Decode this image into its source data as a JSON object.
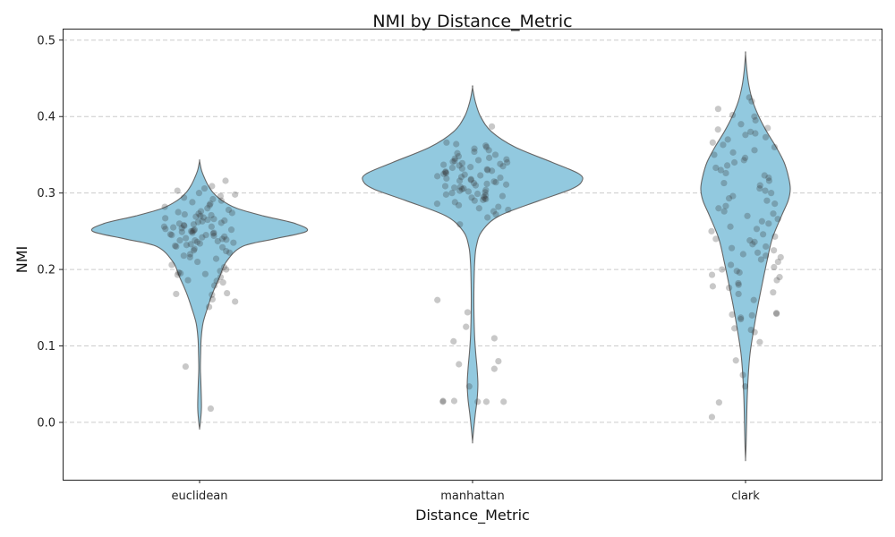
{
  "chart_data": {
    "type": "violin",
    "title": "NMI by Distance_Metric",
    "xlabel": "Distance_Metric",
    "ylabel": "NMI",
    "categories": [
      "euclidean",
      "manhattan",
      "clark"
    ],
    "ylim": [
      -0.075,
      0.515
    ],
    "yticks": [
      "0.0",
      "0.1",
      "0.2",
      "0.3",
      "0.4",
      "0.5"
    ],
    "grid": "y-dashed",
    "colors": {
      "violin_fill": "#92c9df",
      "violin_edge": "#666666",
      "points": "#333333",
      "grid": "#cccccc"
    },
    "violins": [
      {
        "category": "euclidean",
        "profile": [
          [
            -0.008,
            0
          ],
          [
            0.0,
            0.003
          ],
          [
            0.02,
            0.007
          ],
          [
            0.05,
            0.005
          ],
          [
            0.07,
            0.003
          ],
          [
            0.09,
            0.004
          ],
          [
            0.11,
            0.006
          ],
          [
            0.13,
            0.013
          ],
          [
            0.15,
            0.03
          ],
          [
            0.17,
            0.05
          ],
          [
            0.19,
            0.075
          ],
          [
            0.21,
            0.1
          ],
          [
            0.23,
            0.16
          ],
          [
            0.24,
            0.28
          ],
          [
            0.25,
            0.402
          ],
          [
            0.26,
            0.36
          ],
          [
            0.27,
            0.24
          ],
          [
            0.28,
            0.14
          ],
          [
            0.29,
            0.085
          ],
          [
            0.3,
            0.052
          ],
          [
            0.31,
            0.032
          ],
          [
            0.32,
            0.018
          ],
          [
            0.33,
            0.007
          ],
          [
            0.342,
            0
          ]
        ]
      },
      {
        "category": "manhattan",
        "profile": [
          [
            -0.025,
            0
          ],
          [
            -0.01,
            0.004
          ],
          [
            0.01,
            0.01
          ],
          [
            0.03,
            0.017
          ],
          [
            0.05,
            0.02
          ],
          [
            0.07,
            0.017
          ],
          [
            0.09,
            0.012
          ],
          [
            0.11,
            0.008
          ],
          [
            0.13,
            0.006
          ],
          [
            0.15,
            0.005
          ],
          [
            0.17,
            0.005
          ],
          [
            0.19,
            0.006
          ],
          [
            0.21,
            0.008
          ],
          [
            0.23,
            0.014
          ],
          [
            0.25,
            0.035
          ],
          [
            0.27,
            0.1
          ],
          [
            0.29,
            0.25
          ],
          [
            0.305,
            0.37
          ],
          [
            0.315,
            0.41
          ],
          [
            0.325,
            0.4
          ],
          [
            0.34,
            0.3
          ],
          [
            0.36,
            0.16
          ],
          [
            0.38,
            0.072
          ],
          [
            0.4,
            0.03
          ],
          [
            0.42,
            0.01
          ],
          [
            0.438,
            0
          ]
        ]
      },
      {
        "category": "clark",
        "profile": [
          [
            -0.048,
            0
          ],
          [
            -0.03,
            0.002
          ],
          [
            0.0,
            0.004
          ],
          [
            0.03,
            0.006
          ],
          [
            0.06,
            0.01
          ],
          [
            0.09,
            0.017
          ],
          [
            0.12,
            0.03
          ],
          [
            0.15,
            0.045
          ],
          [
            0.18,
            0.062
          ],
          [
            0.21,
            0.08
          ],
          [
            0.24,
            0.1
          ],
          [
            0.27,
            0.135
          ],
          [
            0.29,
            0.16
          ],
          [
            0.305,
            0.168
          ],
          [
            0.32,
            0.162
          ],
          [
            0.34,
            0.145
          ],
          [
            0.36,
            0.115
          ],
          [
            0.38,
            0.08
          ],
          [
            0.4,
            0.05
          ],
          [
            0.42,
            0.027
          ],
          [
            0.44,
            0.013
          ],
          [
            0.46,
            0.005
          ],
          [
            0.482,
            0
          ]
        ]
      }
    ],
    "points": [
      {
        "category": "euclidean",
        "values": [
          0.018,
          0.073,
          0.151,
          0.158,
          0.161,
          0.167,
          0.168,
          0.169,
          0.179,
          0.183,
          0.185,
          0.186,
          0.19,
          0.193,
          0.194,
          0.195,
          0.196,
          0.198,
          0.2,
          0.203,
          0.206,
          0.21,
          0.214,
          0.216,
          0.218,
          0.22,
          0.222,
          0.224,
          0.225,
          0.227,
          0.229,
          0.23,
          0.231,
          0.232,
          0.233,
          0.234,
          0.235,
          0.236,
          0.237,
          0.238,
          0.238,
          0.239,
          0.24,
          0.241,
          0.242,
          0.243,
          0.244,
          0.245,
          0.245,
          0.246,
          0.247,
          0.248,
          0.248,
          0.249,
          0.25,
          0.25,
          0.251,
          0.252,
          0.252,
          0.253,
          0.254,
          0.255,
          0.256,
          0.256,
          0.257,
          0.258,
          0.259,
          0.26,
          0.261,
          0.262,
          0.263,
          0.264,
          0.265,
          0.266,
          0.267,
          0.268,
          0.269,
          0.27,
          0.271,
          0.272,
          0.273,
          0.274,
          0.275,
          0.276,
          0.278,
          0.28,
          0.282,
          0.284,
          0.286,
          0.288,
          0.29,
          0.292,
          0.294,
          0.296,
          0.298,
          0.3,
          0.303,
          0.306,
          0.309,
          0.316
        ]
      },
      {
        "category": "manhattan",
        "values": [
          0.027,
          0.027,
          0.027,
          0.027,
          0.028,
          0.028,
          0.047,
          0.07,
          0.076,
          0.08,
          0.106,
          0.11,
          0.125,
          0.144,
          0.16,
          0.259,
          0.268,
          0.272,
          0.276,
          0.278,
          0.28,
          0.282,
          0.284,
          0.286,
          0.288,
          0.29,
          0.291,
          0.292,
          0.293,
          0.294,
          0.295,
          0.296,
          0.297,
          0.298,
          0.299,
          0.3,
          0.301,
          0.302,
          0.303,
          0.304,
          0.305,
          0.306,
          0.307,
          0.308,
          0.309,
          0.31,
          0.311,
          0.312,
          0.313,
          0.314,
          0.315,
          0.316,
          0.317,
          0.318,
          0.319,
          0.32,
          0.321,
          0.322,
          0.323,
          0.324,
          0.325,
          0.326,
          0.327,
          0.328,
          0.329,
          0.33,
          0.331,
          0.332,
          0.333,
          0.334,
          0.335,
          0.336,
          0.337,
          0.338,
          0.339,
          0.34,
          0.341,
          0.342,
          0.343,
          0.344,
          0.345,
          0.346,
          0.348,
          0.35,
          0.352,
          0.354,
          0.356,
          0.358,
          0.36,
          0.362,
          0.364,
          0.366,
          0.387
        ]
      },
      {
        "category": "clark",
        "values": [
          0.007,
          0.026,
          0.047,
          0.062,
          0.081,
          0.105,
          0.118,
          0.121,
          0.123,
          0.135,
          0.137,
          0.14,
          0.141,
          0.142,
          0.143,
          0.16,
          0.168,
          0.17,
          0.176,
          0.178,
          0.18,
          0.182,
          0.186,
          0.19,
          0.193,
          0.196,
          0.198,
          0.2,
          0.203,
          0.206,
          0.21,
          0.213,
          0.216,
          0.218,
          0.22,
          0.222,
          0.225,
          0.228,
          0.23,
          0.233,
          0.236,
          0.238,
          0.24,
          0.243,
          0.246,
          0.25,
          0.253,
          0.256,
          0.26,
          0.263,
          0.266,
          0.27,
          0.273,
          0.276,
          0.28,
          0.283,
          0.286,
          0.29,
          0.293,
          0.296,
          0.3,
          0.303,
          0.306,
          0.31,
          0.313,
          0.316,
          0.32,
          0.323,
          0.326,
          0.33,
          0.333,
          0.336,
          0.34,
          0.343,
          0.346,
          0.35,
          0.353,
          0.356,
          0.36,
          0.363,
          0.366,
          0.37,
          0.373,
          0.376,
          0.378,
          0.38,
          0.383,
          0.385,
          0.39,
          0.395,
          0.4,
          0.402,
          0.41,
          0.42,
          0.425
        ]
      }
    ]
  }
}
